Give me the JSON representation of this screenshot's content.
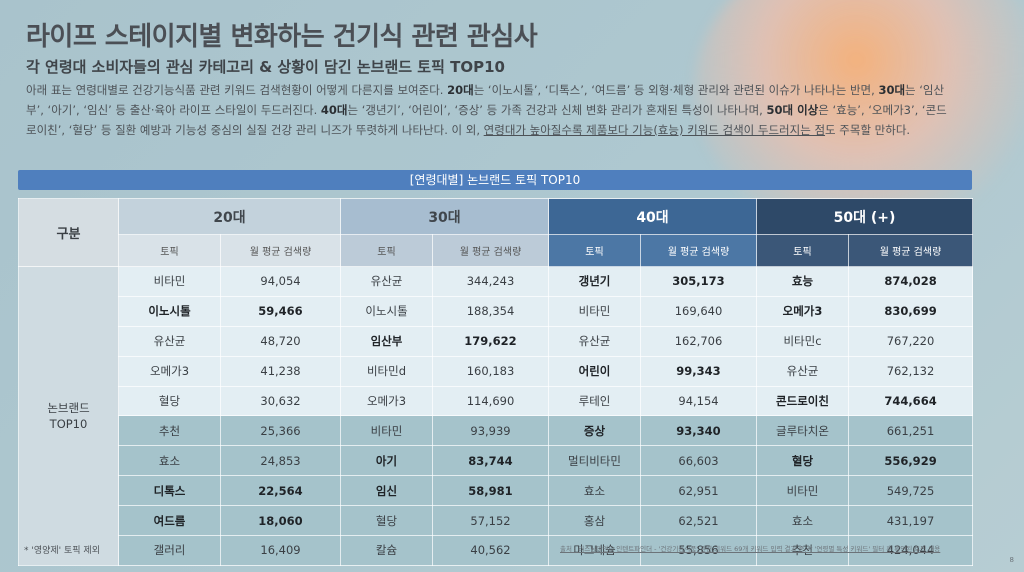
{
  "title": "라이프 스테이지별 변화하는 건기식 관련 관심사",
  "subtitle": "각 연령대 소비자들의 관심 카테고리 & 상황이 담긴 논브랜드 토픽 TOP10",
  "description": {
    "p1": " 아래 표는 연령대별로 건강기능식품 관련 키워드 검색현황이 어떻게 다른지를 보여준다. ",
    "b1": "20대",
    "p2": "는 ‘이노시톨’, ‘디톡스’, ‘여드름’ 등 외형·체형 관리와 관련된 이슈가 나타나는 반면, ",
    "b2": "30대",
    "p3": "는 ‘임산부’, ‘아기’, ‘임신’ 등 출산·육아 라이프 스타일이 두드러진다. ",
    "b3": "40대",
    "p4": "는 ‘갱년기’, ‘어린이’, ‘증상’ 등 가족 건강과 신체 변화 관리가 혼재된 특성이 나타나며, ",
    "b4": "50대 이상",
    "p5": "은 ‘효능’, ‘오메가3’, ‘콘드로이친’, ‘혈당’ 등 질환 예방과 기능성 중심의 실질 건강 관리 니즈가 뚜렷하게 나타난다. 이 외, ",
    "u1": "연령대가 높아질수록 제품보다 기능(효능) 키워드 검색이 두드러지는 점",
    "p6": "도 주목할 만하다."
  },
  "banner": "[연령대별] 논브랜드 토픽 TOP10",
  "table": {
    "corner": "구분",
    "row_label": "논브랜드\nTOP10",
    "groups": [
      "20대",
      "30대",
      "40대",
      "50대 (+)"
    ],
    "sub_topic": "토픽",
    "sub_volume": "월 평균 검색량",
    "rows": [
      [
        {
          "t": "비타민",
          "v": "94,054",
          "b": false
        },
        {
          "t": "유산균",
          "v": "344,243",
          "b": false
        },
        {
          "t": "갱년기",
          "v": "305,173",
          "b": true
        },
        {
          "t": "효능",
          "v": "874,028",
          "b": true
        }
      ],
      [
        {
          "t": "이노시톨",
          "v": "59,466",
          "b": true
        },
        {
          "t": "이노시톨",
          "v": "188,354",
          "b": false
        },
        {
          "t": "비타민",
          "v": "169,640",
          "b": false
        },
        {
          "t": "오메가3",
          "v": "830,699",
          "b": true
        }
      ],
      [
        {
          "t": "유산균",
          "v": "48,720",
          "b": false
        },
        {
          "t": "임산부",
          "v": "179,622",
          "b": true
        },
        {
          "t": "유산균",
          "v": "162,706",
          "b": false
        },
        {
          "t": "비타민c",
          "v": "767,220",
          "b": false
        }
      ],
      [
        {
          "t": "오메가3",
          "v": "41,238",
          "b": false
        },
        {
          "t": "비타민d",
          "v": "160,183",
          "b": false
        },
        {
          "t": "어린이",
          "v": "99,343",
          "b": true
        },
        {
          "t": "유산균",
          "v": "762,132",
          "b": false
        }
      ],
      [
        {
          "t": "혈당",
          "v": "30,632",
          "b": false
        },
        {
          "t": "오메가3",
          "v": "114,690",
          "b": false
        },
        {
          "t": "루테인",
          "v": "94,154",
          "b": false
        },
        {
          "t": "콘드로이친",
          "v": "744,664",
          "b": true
        }
      ],
      [
        {
          "t": "추천",
          "v": "25,366",
          "b": false
        },
        {
          "t": "비타민",
          "v": "93,939",
          "b": false
        },
        {
          "t": "증상",
          "v": "93,340",
          "b": true
        },
        {
          "t": "글루타치온",
          "v": "661,251",
          "b": false
        }
      ],
      [
        {
          "t": "효소",
          "v": "24,853",
          "b": false
        },
        {
          "t": "아기",
          "v": "83,744",
          "b": true
        },
        {
          "t": "멀티비타민",
          "v": "66,603",
          "b": false
        },
        {
          "t": "혈당",
          "v": "556,929",
          "b": true
        }
      ],
      [
        {
          "t": "디톡스",
          "v": "22,564",
          "b": true
        },
        {
          "t": "임신",
          "v": "58,981",
          "b": true
        },
        {
          "t": "효소",
          "v": "62,951",
          "b": false
        },
        {
          "t": "비타민",
          "v": "549,725",
          "b": false
        }
      ],
      [
        {
          "t": "여드름",
          "v": "18,060",
          "b": true
        },
        {
          "t": "혈당",
          "v": "57,152",
          "b": false
        },
        {
          "t": "홍삼",
          "v": "62,521",
          "b": false
        },
        {
          "t": "효소",
          "v": "431,197",
          "b": false
        }
      ],
      [
        {
          "t": "갤러리",
          "v": "16,409",
          "b": false
        },
        {
          "t": "칼슘",
          "v": "40,562",
          "b": false
        },
        {
          "t": "마그네슘",
          "v": "55,856",
          "b": false
        },
        {
          "t": "추천",
          "v": "424,044",
          "b": false
        }
      ]
    ]
  },
  "footnote": "* '영양제' 토픽 제외",
  "source": "출처 : 리스닝마인드 인텐트파인더 - '건강기능식품' 관련 키워드 69개 키워드 입력 결과 중 각 '연령별 특성 키워드' 필터 후 확인된 토픽 내용",
  "page_number": "8"
}
